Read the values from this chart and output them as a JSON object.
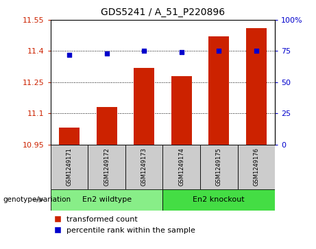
{
  "title": "GDS5241 / A_51_P220896",
  "samples": [
    "GSM1249171",
    "GSM1249172",
    "GSM1249173",
    "GSM1249174",
    "GSM1249175",
    "GSM1249176"
  ],
  "transformed_count": [
    11.03,
    11.13,
    11.32,
    11.28,
    11.47,
    11.51
  ],
  "percentile_rank": [
    72,
    73,
    75,
    74,
    75,
    75
  ],
  "ylim_left": [
    10.95,
    11.55
  ],
  "ylim_right": [
    0,
    100
  ],
  "yticks_left": [
    10.95,
    11.1,
    11.25,
    11.4,
    11.55
  ],
  "yticks_right": [
    0,
    25,
    50,
    75,
    100
  ],
  "ytick_labels_left": [
    "10.95",
    "11.1",
    "11.25",
    "11.4",
    "11.55"
  ],
  "ytick_labels_right": [
    "0",
    "25",
    "50",
    "75",
    "100%"
  ],
  "bar_color": "#cc2200",
  "dot_color": "#0000cc",
  "groups": [
    {
      "label": "En2 wildtype",
      "indices": [
        0,
        1,
        2
      ],
      "color": "#88ee88"
    },
    {
      "label": "En2 knockout",
      "indices": [
        3,
        4,
        5
      ],
      "color": "#44dd44"
    }
  ],
  "genotype_label": "genotype/variation",
  "legend_bar_label": "transformed count",
  "legend_dot_label": "percentile rank within the sample",
  "bg_color": "#ffffff",
  "sample_bg_color": "#cccccc",
  "left_tick_color": "#cc2200",
  "right_tick_color": "#0000cc"
}
